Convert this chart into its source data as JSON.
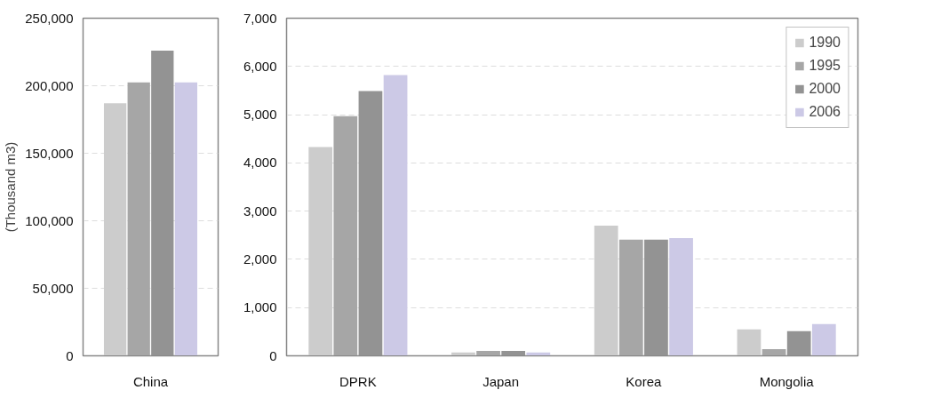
{
  "chart_data": [
    {
      "type": "bar",
      "ylabel": "(Thousand m3)",
      "categories": [
        "China"
      ],
      "ylim": [
        0,
        250000
      ],
      "yticks": [
        {
          "value": 0,
          "label": "0"
        },
        {
          "value": 50000,
          "label": "50,000"
        },
        {
          "value": 100000,
          "label": "100,000"
        },
        {
          "value": 150000,
          "label": "150,000"
        },
        {
          "value": 200000,
          "label": "200,000"
        },
        {
          "value": 250000,
          "label": "250,000"
        }
      ],
      "grid": "y",
      "legend": false,
      "series": [
        {
          "color": "#cccccc",
          "values": [
            187000
          ]
        },
        {
          "color": "#a6a6a6",
          "values": [
            202500
          ]
        },
        {
          "color": "#939393",
          "values": [
            226000
          ]
        },
        {
          "color": "#ccc9e6",
          "values": [
            202500
          ]
        }
      ]
    },
    {
      "type": "bar",
      "categories": [
        "DPRK",
        "Japan",
        "Korea",
        "Mongolia"
      ],
      "ylim": [
        0,
        7000
      ],
      "yticks": [
        {
          "value": 0,
          "label": "0"
        },
        {
          "value": 1000,
          "label": "1,000"
        },
        {
          "value": 2000,
          "label": "2,000"
        },
        {
          "value": 3000,
          "label": "3,000"
        },
        {
          "value": 4000,
          "label": "4,000"
        },
        {
          "value": 5000,
          "label": "5,000"
        },
        {
          "value": 6000,
          "label": "6,000"
        },
        {
          "value": 7000,
          "label": "7,000"
        }
      ],
      "grid": "y",
      "legend": "top right",
      "series": [
        {
          "name": "1990",
          "color": "#cccccc",
          "values": [
            4330,
            70,
            2700,
            550
          ]
        },
        {
          "name": "1995",
          "color": "#a6a6a6",
          "values": [
            4970,
            100,
            2410,
            140
          ]
        },
        {
          "name": "2000",
          "color": "#939393",
          "values": [
            5490,
            100,
            2410,
            510
          ]
        },
        {
          "name": "2006",
          "color": "#ccc9e6",
          "values": [
            5820,
            70,
            2440,
            660
          ]
        }
      ]
    }
  ]
}
